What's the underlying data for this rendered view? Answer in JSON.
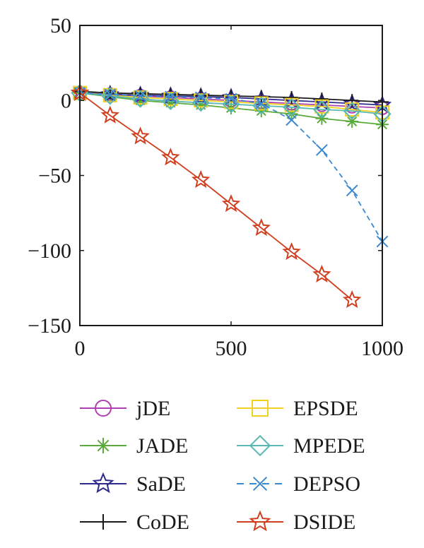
{
  "chart_data": {
    "type": "line",
    "title": "",
    "xlabel": "",
    "ylabel": "",
    "xlim": [
      0,
      1000
    ],
    "ylim": [
      -150,
      50
    ],
    "xticks": [
      0,
      500,
      1000
    ],
    "yticks": [
      50,
      0,
      -50,
      -100,
      -150
    ],
    "x": [
      0,
      100,
      200,
      300,
      400,
      500,
      600,
      700,
      800,
      900,
      1000
    ],
    "grid": false,
    "legend_position": "below",
    "series": [
      {
        "name": "jDE",
        "color": "#b040b0",
        "marker": "circle",
        "dash": "solid",
        "y": [
          5,
          4,
          3,
          2,
          1,
          0,
          -1,
          -2,
          -3,
          -4,
          -5
        ]
      },
      {
        "name": "JADE",
        "color": "#5aaa3a",
        "marker": "asterisk",
        "dash": "solid",
        "y": [
          5,
          2.5,
          0,
          -1.5,
          -3,
          -5,
          -7,
          -9,
          -12,
          -14,
          -16
        ]
      },
      {
        "name": "SaDE",
        "color": "#2e2a8e",
        "marker": "star",
        "dash": "solid",
        "y": [
          5,
          4,
          3.5,
          3,
          2.5,
          2,
          1,
          0,
          -1,
          -2,
          -3
        ]
      },
      {
        "name": "CoDE",
        "color": "#1a1a1a",
        "marker": "plus",
        "dash": "solid",
        "y": [
          6,
          5,
          4.5,
          4,
          3.5,
          3,
          2.5,
          2,
          1,
          0,
          -1
        ]
      },
      {
        "name": "EPSDE",
        "color": "#f0d020",
        "marker": "square",
        "dash": "solid",
        "y": [
          5,
          3.5,
          2,
          1,
          0,
          -1,
          -2,
          -3,
          -4,
          -6,
          -8
        ]
      },
      {
        "name": "MPEDE",
        "color": "#5ab8b4",
        "marker": "diamond",
        "dash": "solid",
        "y": [
          5,
          3,
          1,
          -0.5,
          -1.5,
          -2.5,
          -3.5,
          -4.5,
          -6,
          -7,
          -9
        ]
      },
      {
        "name": "DEPSO",
        "color": "#3a88d0",
        "marker": "x",
        "dash": "dashed",
        "y": [
          5,
          4,
          3,
          2.5,
          2,
          1,
          -2,
          -13,
          -33,
          -60,
          -94
        ]
      },
      {
        "name": "DSIDE",
        "color": "#d04020",
        "marker": "star",
        "dash": "solid",
        "y": [
          5,
          -10,
          -24,
          -38,
          -53,
          -69,
          -85,
          -101,
          -116,
          -133,
          null
        ]
      }
    ]
  }
}
